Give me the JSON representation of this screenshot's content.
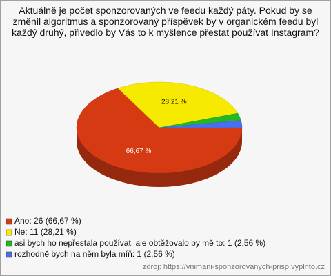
{
  "chart_data": {
    "type": "pie",
    "title": "Aktuálně je počet sponzorovaných ve feedu každý páty. Pokud by se změnil algoritmus a sponzorovaný příspěvek by v organickém feedu byl každý druhý, přivedlo by Vás to k myšlence přestat používat Instagram?",
    "categories": [
      "Ano: 26 (66,67 %)",
      "Ne: 11 (28,21 %)",
      "asi bych ho nepřestala používat, ale obtěžovalo by mě to: 1 (2,56 %)",
      "rozhodně bych na něm byla míň: 1 (2,56 %)"
    ],
    "values": [
      66.67,
      28.21,
      2.56,
      2.56
    ],
    "value_labels": [
      "66,67 %",
      "28,21 %",
      null,
      null
    ],
    "colors": [
      "#d63a12",
      "#f6ea00",
      "#22b822",
      "#4a6ef0"
    ],
    "source": "zdroj: https://vnimani-sponzorovanych-prisp.vyplnto.cz"
  }
}
